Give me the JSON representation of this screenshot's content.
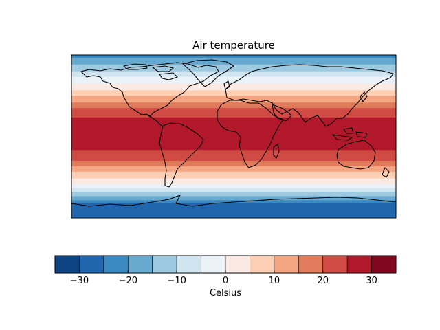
{
  "title": "Air temperature",
  "map": {
    "projection": "plate-carree",
    "extent_lon": [
      -180,
      180
    ],
    "extent_lat": [
      -90,
      90
    ],
    "field": "air temperature",
    "coastlines": true,
    "temperature_bands": [
      {
        "lat": 90,
        "value": -22
      },
      {
        "lat": 75,
        "value": -12
      },
      {
        "lat": 62,
        "value": -2
      },
      {
        "lat": 50,
        "value": 6
      },
      {
        "lat": 38,
        "value": 15
      },
      {
        "lat": 25,
        "value": 24
      },
      {
        "lat": 10,
        "value": 28
      },
      {
        "lat": -10,
        "value": 27
      },
      {
        "lat": -25,
        "value": 21
      },
      {
        "lat": -35,
        "value": 13
      },
      {
        "lat": -45,
        "value": 6
      },
      {
        "lat": -55,
        "value": -2
      },
      {
        "lat": -65,
        "value": -14
      },
      {
        "lat": -75,
        "value": -26
      },
      {
        "lat": -90,
        "value": -30
      }
    ]
  },
  "colorbar": {
    "label": "Celsius",
    "levels": [
      -35,
      -30,
      -25,
      -20,
      -15,
      -10,
      -5,
      0,
      5,
      10,
      15,
      20,
      25,
      30,
      35
    ],
    "colors": [
      "#0e4481",
      "#2166ac",
      "#3a89c0",
      "#67a9cf",
      "#9ecae1",
      "#d1e5f0",
      "#eaf2f7",
      "#fbe9e3",
      "#fdd0b5",
      "#f4a582",
      "#e07b5c",
      "#d04b44",
      "#b2182b",
      "#80061f"
    ],
    "ticks": [
      -30,
      -20,
      -10,
      0,
      10,
      20,
      30
    ],
    "tick_labels": [
      "−30",
      "−20",
      "−10",
      "0",
      "10",
      "20",
      "30"
    ]
  }
}
